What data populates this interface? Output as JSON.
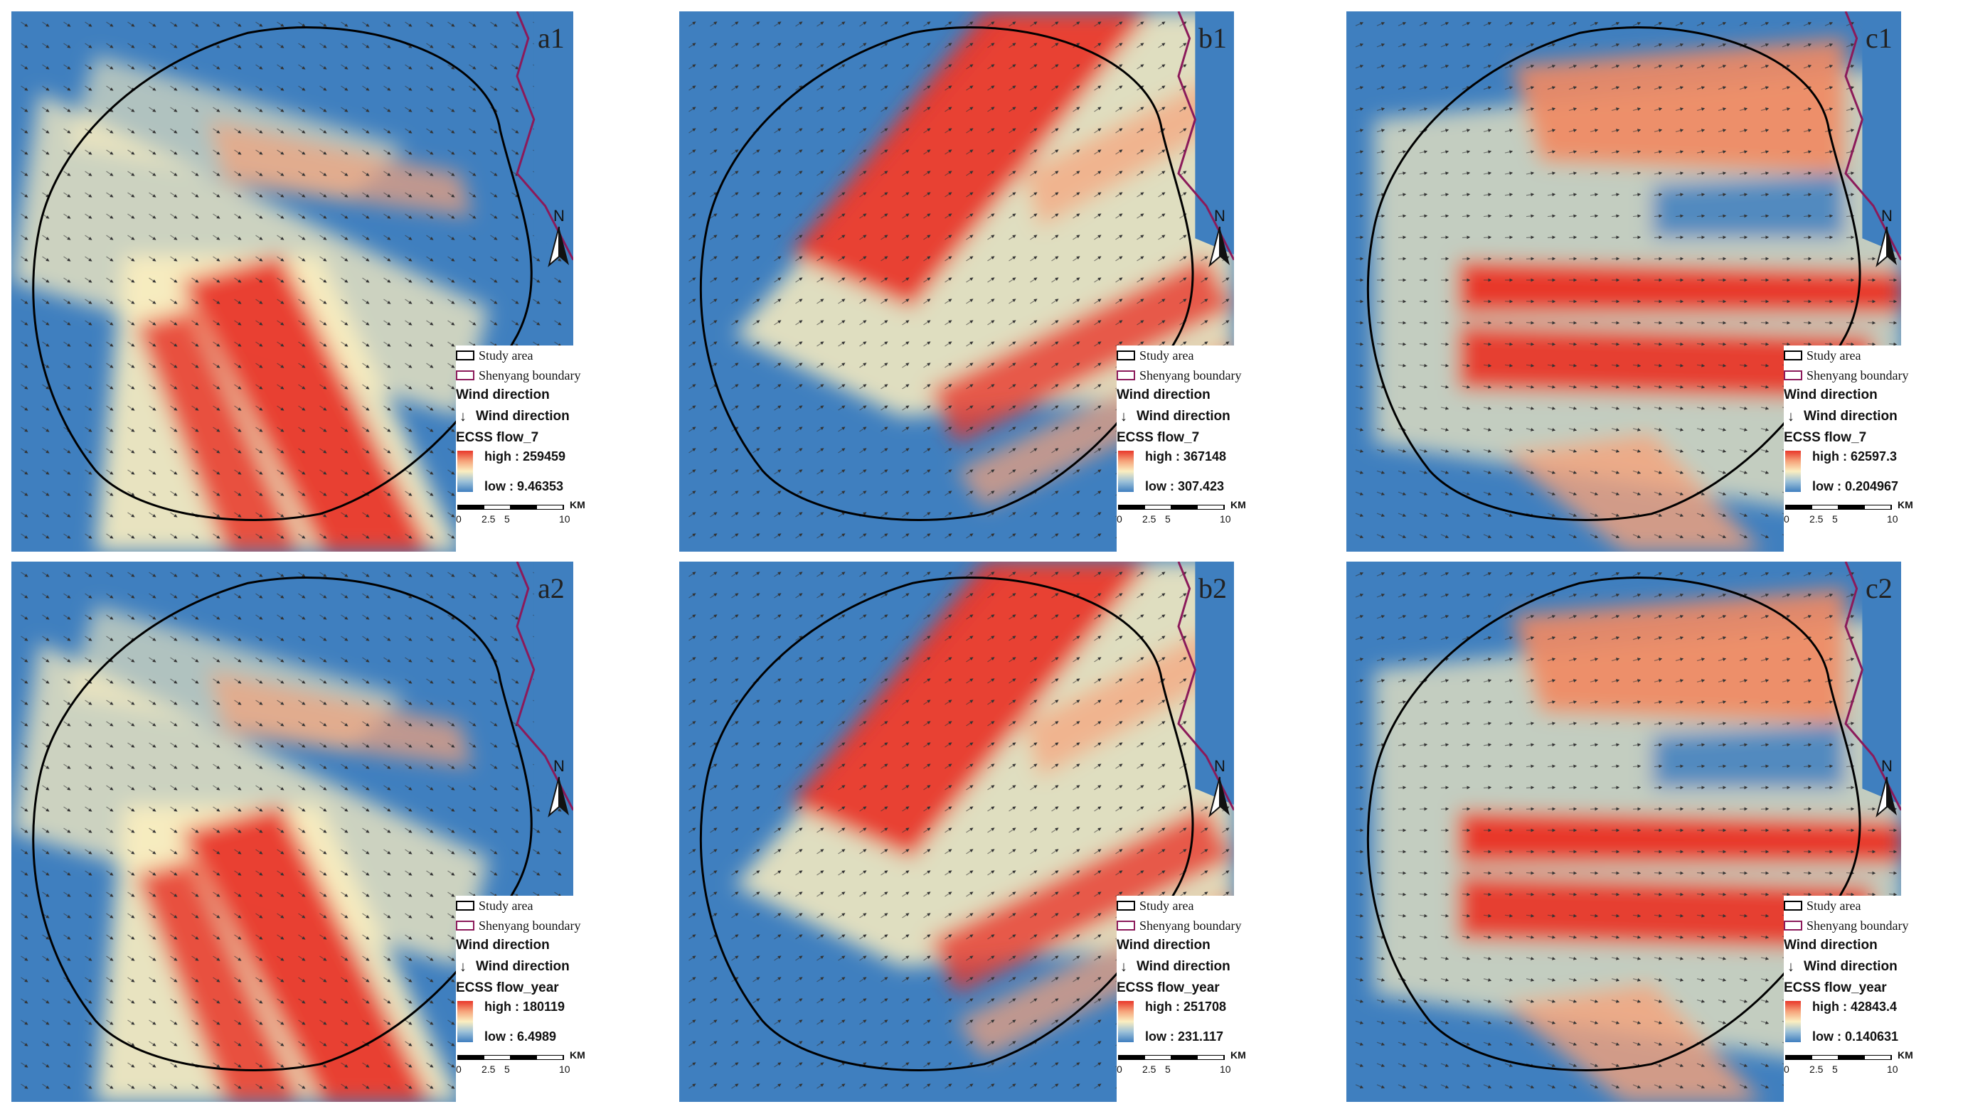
{
  "panels": [
    {
      "label": "a1",
      "field": "ECSS flow_7",
      "high": "high : 259459",
      "low": "low : 9.46353",
      "style": "a"
    },
    {
      "label": "b1",
      "field": "ECSS flow_7",
      "high": "high : 367148",
      "low": "low : 307.423",
      "style": "b"
    },
    {
      "label": "c1",
      "field": "ECSS flow_7",
      "high": "high : 62597.3",
      "low": "low : 0.204967",
      "style": "c"
    },
    {
      "label": "a2",
      "field": "ECSS flow_year",
      "high": "high : 180119",
      "low": "low : 6.4989",
      "style": "a"
    },
    {
      "label": "b2",
      "field": "ECSS flow_year",
      "high": "high : 251708",
      "low": "low : 231.117",
      "style": "b"
    },
    {
      "label": "c2",
      "field": "ECSS flow_year",
      "high": "high : 42843.4",
      "low": "low : 0.140631",
      "style": "c"
    }
  ],
  "legend": {
    "study_area": "Study area",
    "boundary": "Shenyang boundary",
    "wind_title": "Wind direction",
    "wind_item": "Wind direction",
    "arrow_glyph": "↓"
  },
  "north_label": "N",
  "scale": {
    "unit": "KM",
    "ticks": [
      "0",
      "2.5",
      "5",
      "10"
    ]
  },
  "colors": {
    "high": "#e8372a",
    "mid": "#fbeec0",
    "low": "#3f7fbf",
    "study_area": "#000000",
    "boundary": "#8b1a5a"
  }
}
